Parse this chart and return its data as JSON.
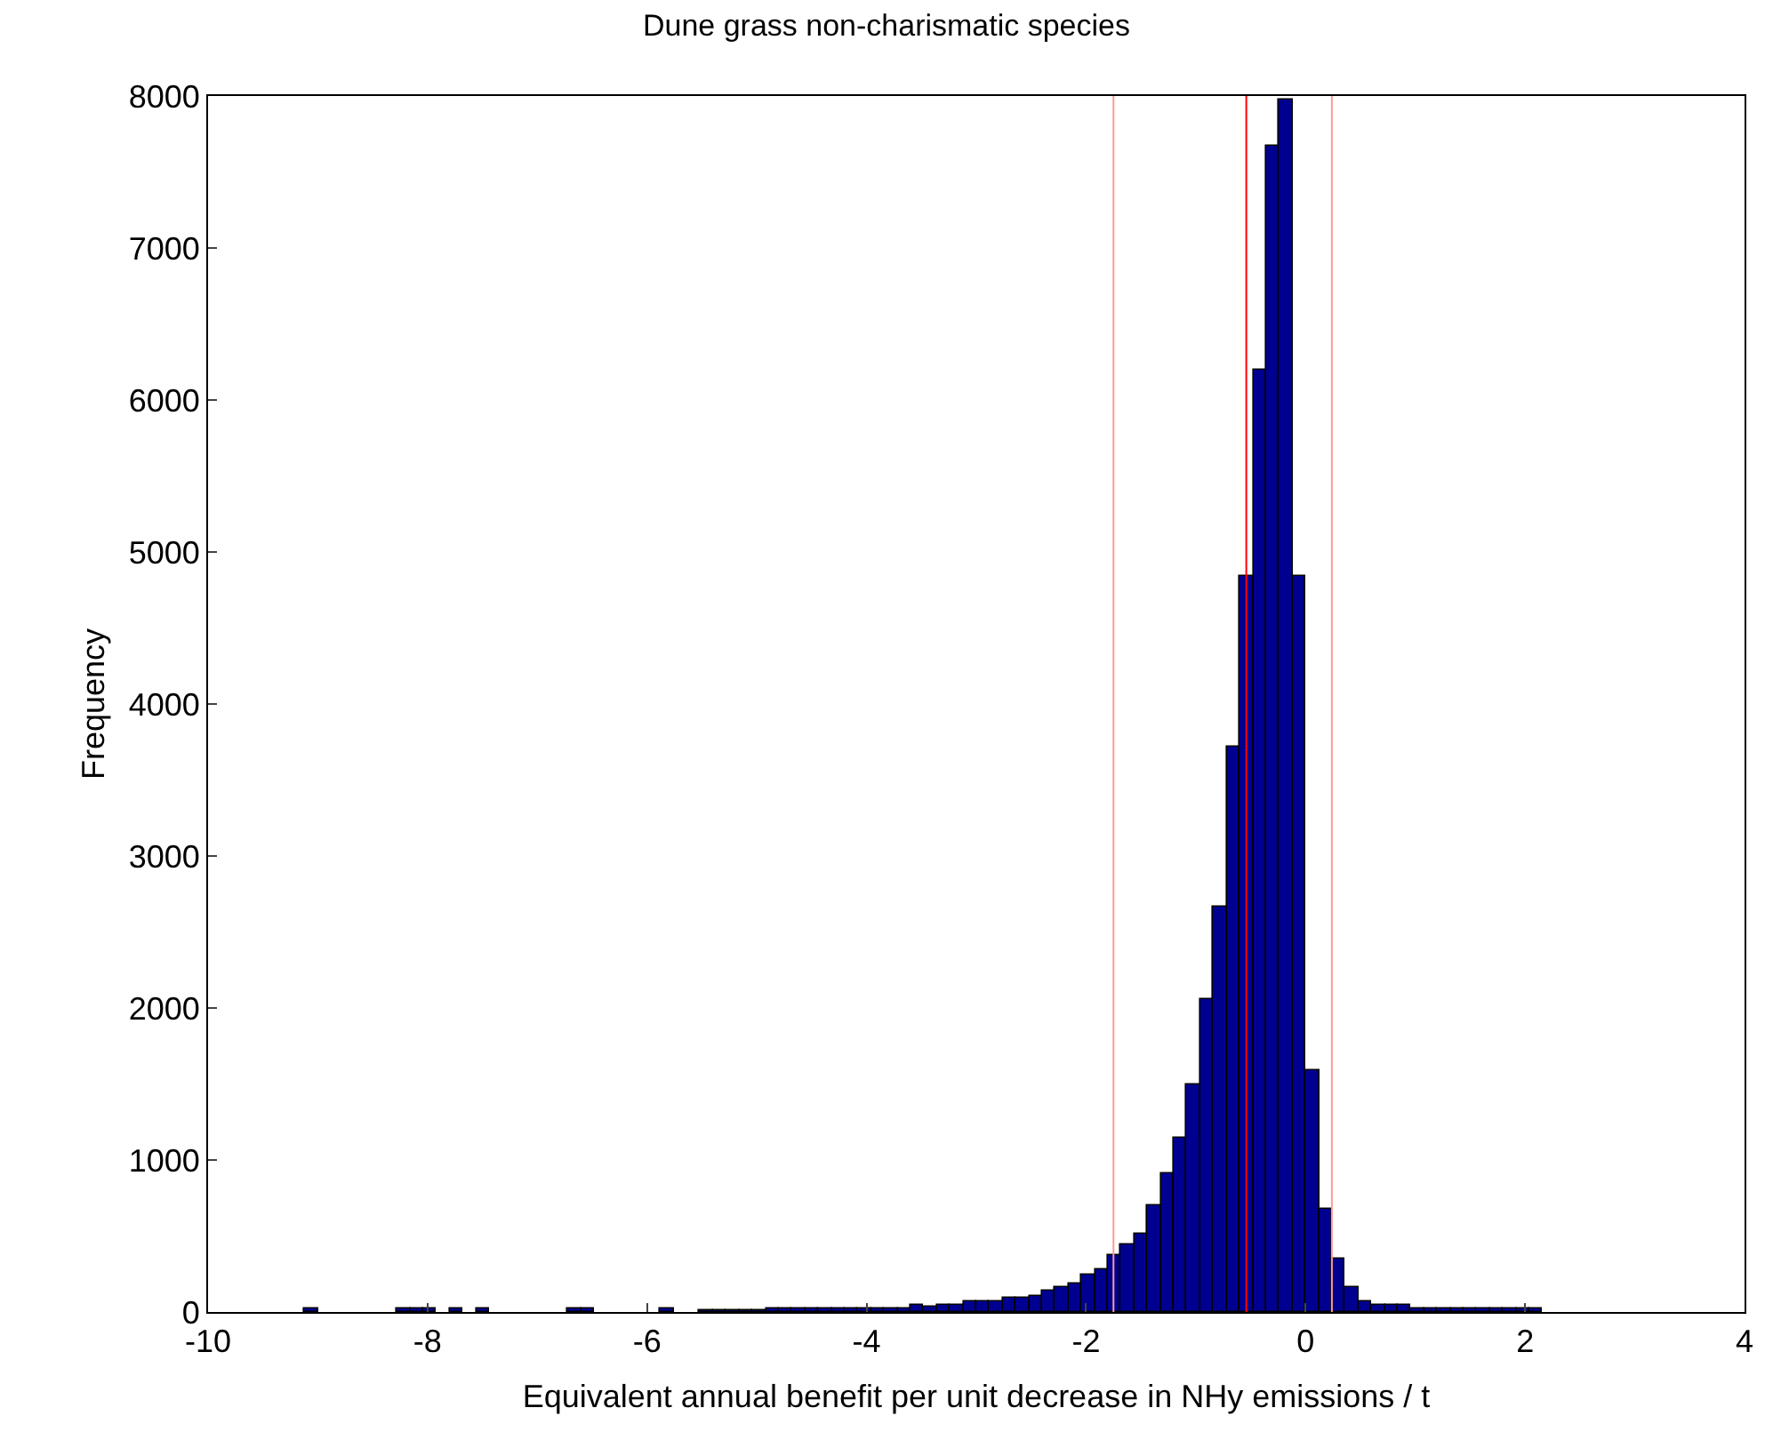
{
  "chart_data": {
    "type": "histogram",
    "title": "Dune grass non-charismatic species",
    "xlabel": "Equivalent annual benefit per unit decrease in NHy emissions / t",
    "ylabel": "Frequency",
    "bins": [
      -9.24,
      -9.12,
      -9.0,
      -8.88,
      -8.76,
      -8.64,
      -8.52,
      -8.4,
      -8.28,
      -8.16,
      -8.04,
      -7.92,
      -7.8,
      -7.68,
      -7.56,
      -7.44,
      -7.32,
      -7.2,
      -7.08,
      -6.96,
      -6.84,
      -6.72,
      -6.6,
      -6.48,
      -6.36,
      -6.24,
      -6.12,
      -6.0,
      -5.88,
      -5.76,
      -5.64,
      -5.52,
      -5.4,
      -5.28,
      -5.16,
      -5.04,
      -4.92,
      -4.8,
      -4.68,
      -4.56,
      -4.44,
      -4.32,
      -4.2,
      -4.08,
      -3.96,
      -3.84,
      -3.72,
      -3.6,
      -3.48,
      -3.36,
      -3.24,
      -3.12,
      -3.0,
      -2.88,
      -2.76,
      -2.64,
      -2.52,
      -2.4,
      -2.28,
      -2.16,
      -2.04,
      -1.92,
      -1.8,
      -1.68,
      -1.56,
      -1.44,
      -1.32,
      -1.2,
      -1.08,
      -0.96,
      -0.84,
      -0.72,
      -0.6,
      -0.48,
      -0.36,
      -0.24,
      -0.12,
      0,
      0.12,
      0.24,
      0.36,
      0.48,
      0.6,
      0.72,
      0.84,
      0.96,
      1.08,
      1.2,
      1.32,
      1.44,
      1.56,
      1.68,
      1.8,
      1.92,
      2.04,
      2.16
    ],
    "values": [
      0,
      20,
      0,
      0,
      0,
      0,
      0,
      0,
      20,
      20,
      20,
      0,
      20,
      0,
      20,
      0,
      0,
      0,
      0,
      0,
      0,
      20,
      20,
      0,
      0,
      0,
      0,
      0,
      20,
      0,
      0,
      10,
      10,
      10,
      10,
      10,
      20,
      20,
      20,
      20,
      20,
      20,
      20,
      20,
      20,
      20,
      20,
      50,
      30,
      50,
      50,
      70,
      70,
      70,
      90,
      90,
      110,
      140,
      160,
      190,
      250,
      280,
      370,
      450,
      510,
      700,
      910,
      1150,
      1500,
      2060,
      2670,
      3720,
      4840,
      6200,
      7670,
      7980,
      4840,
      1590,
      680,
      350,
      160,
      70,
      50,
      50,
      50,
      20,
      20,
      20,
      20,
      20,
      20,
      20,
      20,
      20,
      20
    ],
    "color": "#000090",
    "xlim": [
      -10,
      4
    ],
    "xticks": [
      -10,
      -8,
      -6,
      -4,
      -2,
      0,
      2,
      4
    ],
    "ylim": [
      0,
      8000
    ],
    "yticks": [
      0,
      1000,
      2000,
      3000,
      4000,
      5000,
      6000,
      7000,
      8000
    ],
    "ref_lines": [
      {
        "axis": "x",
        "value": -1.75,
        "color": "#ff9999"
      },
      {
        "axis": "x",
        "value": -0.54,
        "color": "#ff0000"
      },
      {
        "axis": "x",
        "value": 0.24,
        "color": "#ff9999"
      }
    ]
  }
}
